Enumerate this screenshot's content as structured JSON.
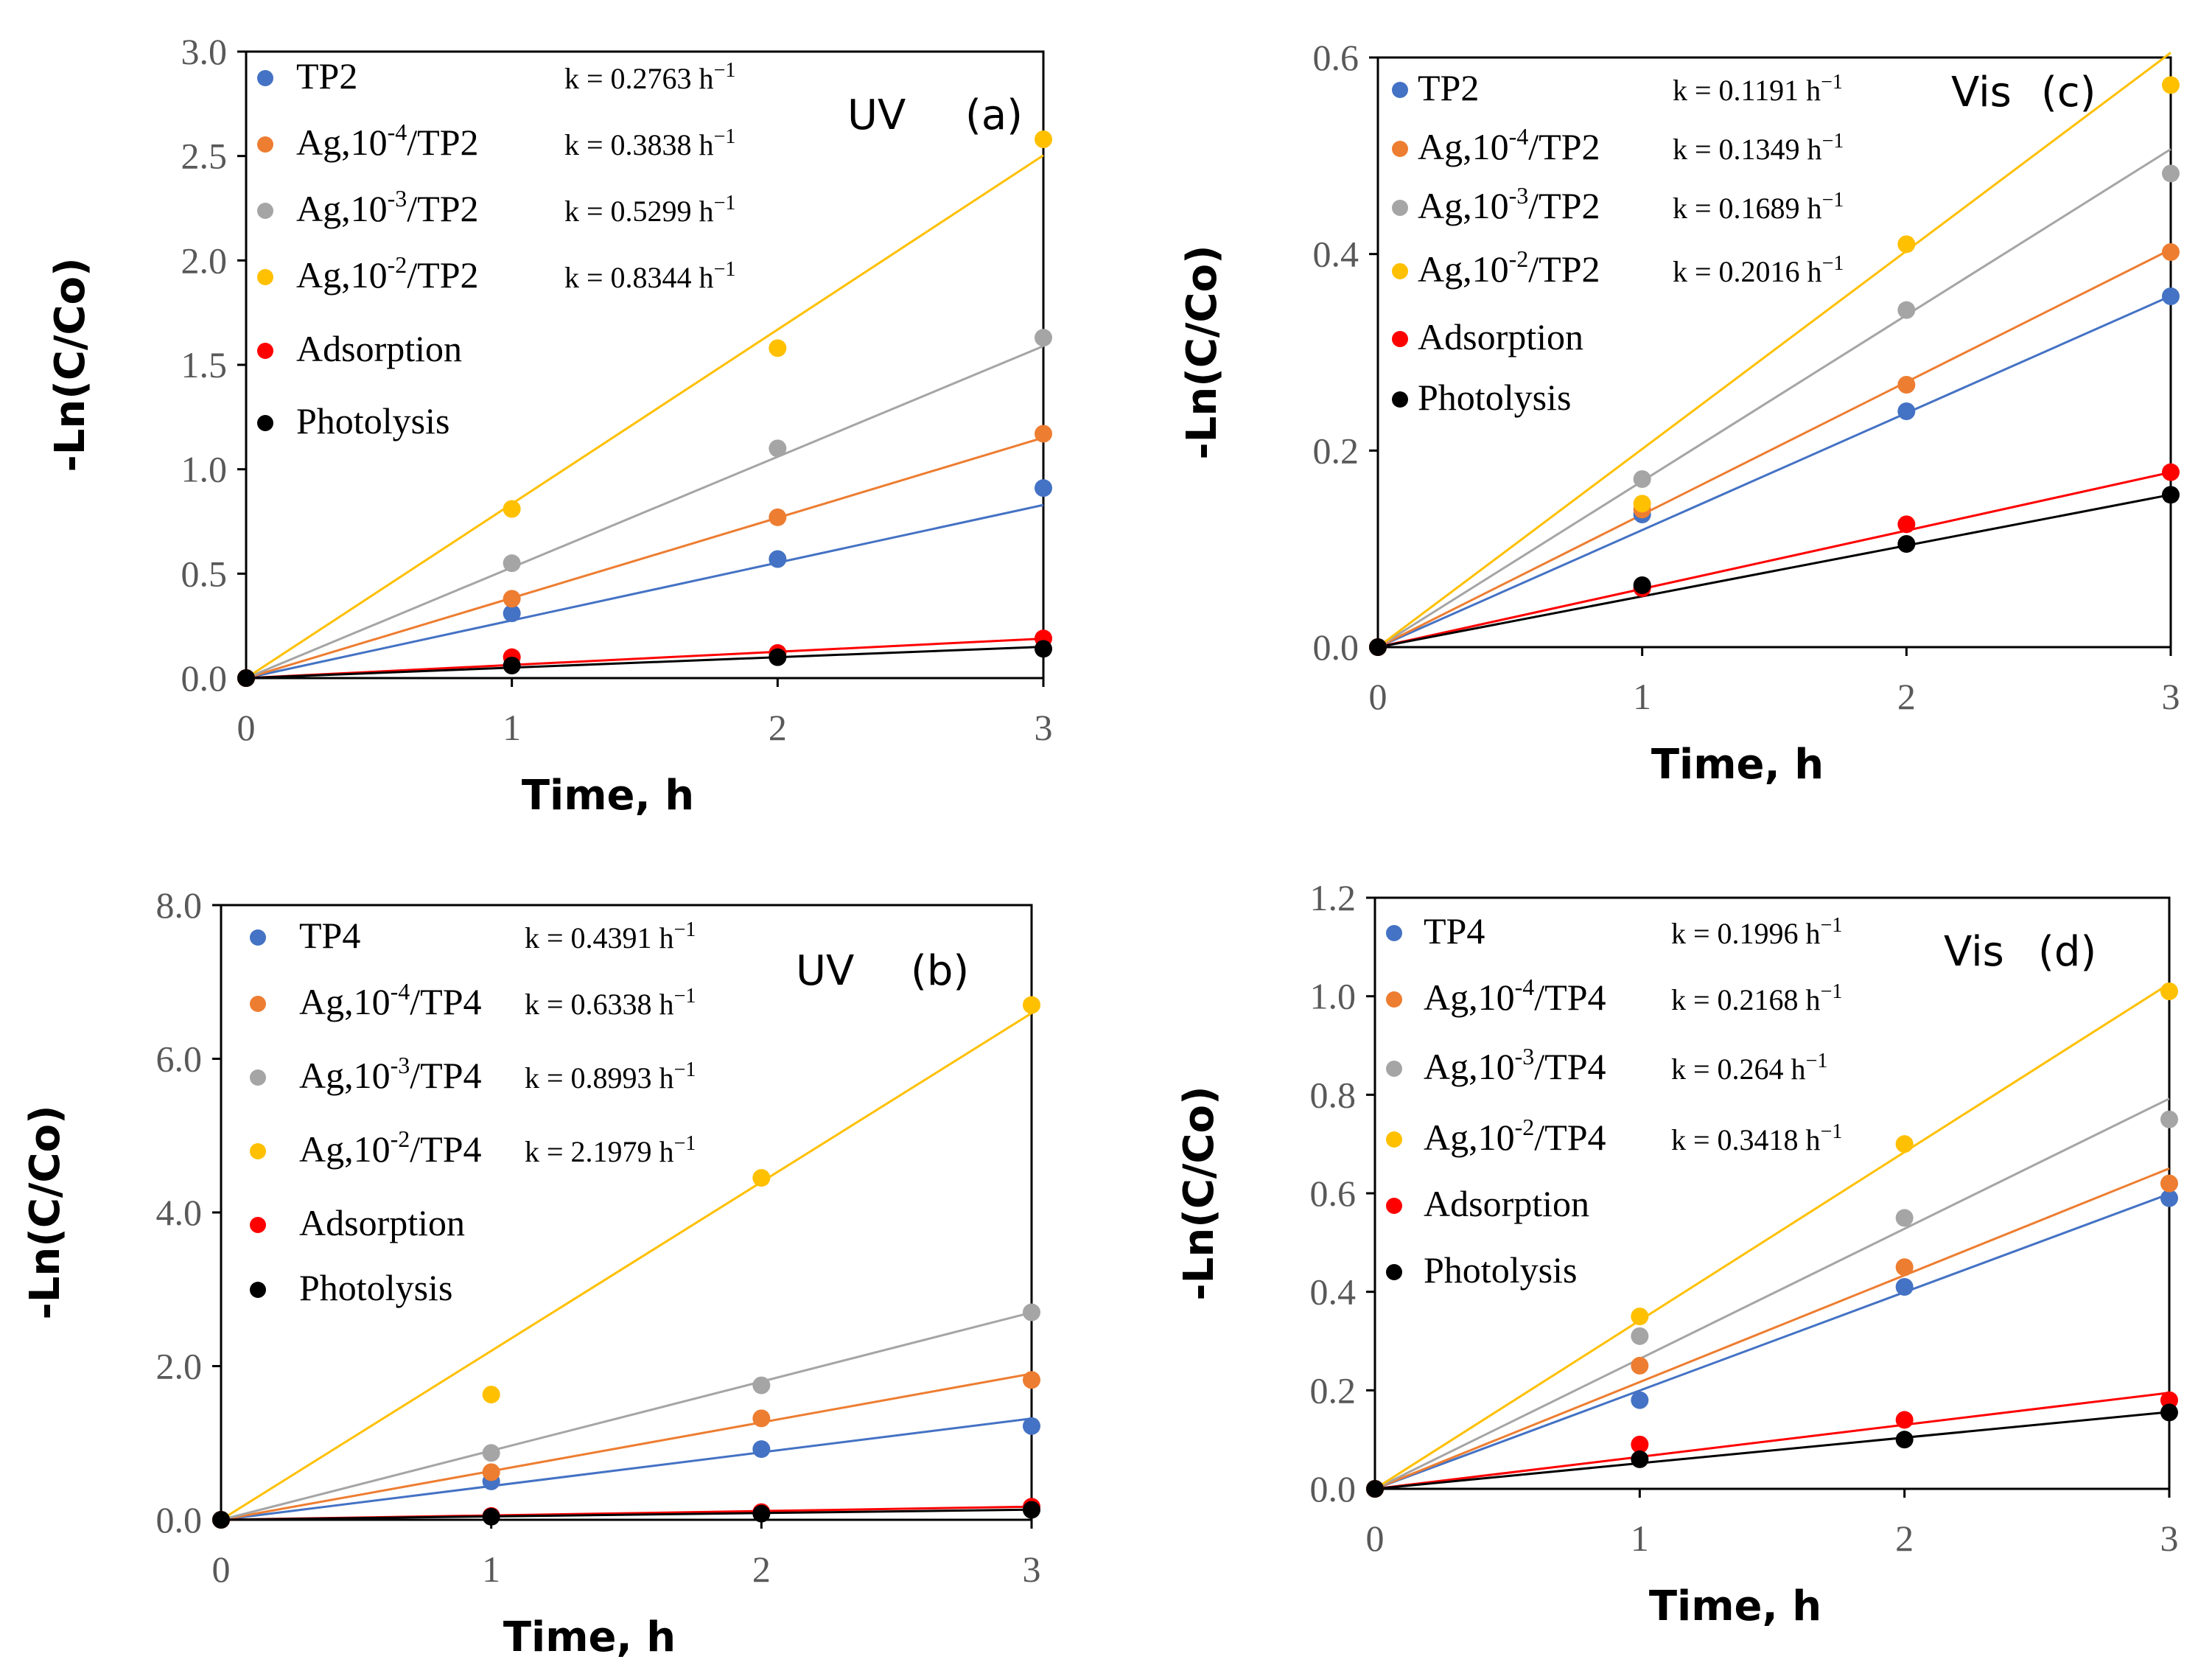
{
  "chart_data": [
    {
      "id": "a",
      "type": "scatter",
      "title": "",
      "light": "UV",
      "panel_label": "(a)",
      "xlabel": "Time, h",
      "ylabel": "-Ln(C/Co)",
      "xlim": [
        0,
        3
      ],
      "ylim": [
        0,
        3
      ],
      "x_ticks": [
        "0",
        "1",
        "2",
        "3"
      ],
      "y_ticks": [
        "0.0",
        "0.5",
        "1.0",
        "1.5",
        "2.0",
        "2.5",
        "3.0"
      ],
      "legend_position": "top-left",
      "x": [
        0,
        1,
        2,
        3
      ],
      "series": [
        {
          "name": "TP2",
          "name_parts": [
            "TP2",
            "",
            ""
          ],
          "k": "k = 0.2763 h",
          "color": "#4472C4",
          "values": [
            0,
            0.31,
            0.57,
            0.91
          ],
          "slope": 0.2763
        },
        {
          "name": "Ag,10-4/TP2",
          "name_parts": [
            "Ag,10",
            "-4",
            "/TP2"
          ],
          "k": "k = 0.3838 h",
          "color": "#ED7D31",
          "values": [
            0,
            0.38,
            0.77,
            1.17
          ],
          "slope": 0.3838
        },
        {
          "name": "Ag,10-3/TP2",
          "name_parts": [
            "Ag,10",
            "-3",
            "/TP2"
          ],
          "k": "k = 0.5299 h",
          "color": "#A5A5A5",
          "values": [
            0,
            0.55,
            1.1,
            1.63
          ],
          "slope": 0.5299
        },
        {
          "name": "Ag,10-2/TP2",
          "name_parts": [
            "Ag,10",
            "-2",
            "/TP2"
          ],
          "k": "k = 0.8344 h",
          "color": "#FFC000",
          "values": [
            0,
            0.81,
            1.58,
            2.58
          ],
          "slope": 0.8344
        },
        {
          "name": "Adsorption",
          "name_parts": [
            "Adsorption",
            "",
            ""
          ],
          "k": "",
          "color": "#FF0000",
          "values": [
            0,
            0.1,
            0.12,
            0.19
          ],
          "slope": 0.063
        },
        {
          "name": "Photolysis",
          "name_parts": [
            "Photolysis",
            "",
            ""
          ],
          "k": "",
          "color": "#000000",
          "values": [
            0,
            0.06,
            0.1,
            0.14
          ],
          "slope": 0.05
        }
      ]
    },
    {
      "id": "c",
      "type": "scatter",
      "title": "",
      "light": "Vis",
      "panel_label": "(c)",
      "xlabel": "Time, h",
      "ylabel": "-Ln(C/Co)",
      "xlim": [
        0,
        3
      ],
      "ylim": [
        0,
        0.6
      ],
      "x_ticks": [
        "0",
        "1",
        "2",
        "3"
      ],
      "y_ticks": [
        "0.0",
        "0.2",
        "0.4",
        "0.6"
      ],
      "legend_position": "top-left",
      "x": [
        0,
        1,
        2,
        3
      ],
      "series": [
        {
          "name": "TP2",
          "name_parts": [
            "TP2",
            "",
            ""
          ],
          "k": "k = 0.1191 h",
          "color": "#4472C4",
          "values": [
            0,
            0.135,
            0.24,
            0.357
          ],
          "slope": 0.1191
        },
        {
          "name": "Ag,10-4/TP2",
          "name_parts": [
            "Ag,10",
            "-4",
            "/TP2"
          ],
          "k": "k = 0.1349 h",
          "color": "#ED7D31",
          "values": [
            0,
            0.14,
            0.267,
            0.402
          ],
          "slope": 0.1349
        },
        {
          "name": "Ag,10-3/TP2",
          "name_parts": [
            "Ag,10",
            "-3",
            "/TP2"
          ],
          "k": "k = 0.1689 h",
          "color": "#A5A5A5",
          "values": [
            0,
            0.171,
            0.343,
            0.482
          ],
          "slope": 0.1689
        },
        {
          "name": "Ag,10-2/TP2",
          "name_parts": [
            "Ag,10",
            "-2",
            "/TP2"
          ],
          "k": "k = 0.2016 h",
          "color": "#FFC000",
          "values": [
            0,
            0.146,
            0.41,
            0.572
          ],
          "slope": 0.2016
        },
        {
          "name": "Adsorption",
          "name_parts": [
            "Adsorption",
            "",
            ""
          ],
          "k": "",
          "color": "#FF0000",
          "values": [
            0,
            0.06,
            0.125,
            0.178
          ],
          "slope": 0.0593
        },
        {
          "name": "Photolysis",
          "name_parts": [
            "Photolysis",
            "",
            ""
          ],
          "k": "",
          "color": "#000000",
          "values": [
            0,
            0.063,
            0.105,
            0.155
          ],
          "slope": 0.0517
        }
      ]
    },
    {
      "id": "b",
      "type": "scatter",
      "title": "",
      "light": "UV",
      "panel_label": "(b)",
      "xlabel": "Time, h",
      "ylabel": "-Ln(C/Co)",
      "xlim": [
        0,
        3
      ],
      "ylim": [
        0,
        8
      ],
      "x_ticks": [
        "0",
        "1",
        "2",
        "3"
      ],
      "y_ticks": [
        "0.0",
        "2.0",
        "4.0",
        "6.0",
        "8.0"
      ],
      "legend_position": "top-left",
      "x": [
        0,
        1,
        2,
        3
      ],
      "series": [
        {
          "name": "TP4",
          "name_parts": [
            "TP4",
            "",
            ""
          ],
          "k": "k = 0.4391 h",
          "color": "#4472C4",
          "values": [
            0,
            0.5,
            0.92,
            1.22
          ],
          "slope": 0.4391
        },
        {
          "name": "Ag,10-4/TP4",
          "name_parts": [
            "Ag,10",
            "-4",
            "/TP4"
          ],
          "k": "k = 0.6338 h",
          "color": "#ED7D31",
          "values": [
            0,
            0.62,
            1.32,
            1.82
          ],
          "slope": 0.6338
        },
        {
          "name": "Ag,10-3/TP4",
          "name_parts": [
            "Ag,10",
            "-3",
            "/TP4"
          ],
          "k": "k = 0.8993 h",
          "color": "#A5A5A5",
          "values": [
            0,
            0.87,
            1.75,
            2.7
          ],
          "slope": 0.8993
        },
        {
          "name": "Ag,10-2/TP4",
          "name_parts": [
            "Ag,10",
            "-2",
            "/TP4"
          ],
          "k": "k = 2.1979 h",
          "color": "#FFC000",
          "values": [
            0,
            1.63,
            4.45,
            6.7
          ],
          "slope": 2.1979
        },
        {
          "name": "Adsorption",
          "name_parts": [
            "Adsorption",
            "",
            ""
          ],
          "k": "",
          "color": "#FF0000",
          "values": [
            0,
            0.05,
            0.1,
            0.17
          ],
          "slope": 0.057
        },
        {
          "name": "Photolysis",
          "name_parts": [
            "Photolysis",
            "",
            ""
          ],
          "k": "",
          "color": "#000000",
          "values": [
            0,
            0.04,
            0.08,
            0.13
          ],
          "slope": 0.044
        }
      ]
    },
    {
      "id": "d",
      "type": "scatter",
      "title": "",
      "light": "Vis",
      "panel_label": "(d)",
      "xlabel": "Time, h",
      "ylabel": "-Ln(C/Co)",
      "xlim": [
        0,
        3
      ],
      "ylim": [
        0,
        1.2
      ],
      "x_ticks": [
        "0",
        "1",
        "2",
        "3"
      ],
      "y_ticks": [
        "0.0",
        "0.2",
        "0.4",
        "0.6",
        "0.8",
        "1.0",
        "1.2"
      ],
      "legend_position": "top-left",
      "x": [
        0,
        1,
        2,
        3
      ],
      "series": [
        {
          "name": "TP4",
          "name_parts": [
            "TP4",
            "",
            ""
          ],
          "k": "k = 0.1996 h",
          "color": "#4472C4",
          "values": [
            0,
            0.18,
            0.41,
            0.59
          ],
          "slope": 0.1996
        },
        {
          "name": "Ag,10-4/TP4",
          "name_parts": [
            "Ag,10",
            "-4",
            "/TP4"
          ],
          "k": "k = 0.2168 h",
          "color": "#ED7D31",
          "values": [
            0,
            0.25,
            0.45,
            0.62
          ],
          "slope": 0.2168
        },
        {
          "name": "Ag,10-3/TP4",
          "name_parts": [
            "Ag,10",
            "-3",
            "/TP4"
          ],
          "k": "k = 0.264 h",
          "color": "#A5A5A5",
          "values": [
            0,
            0.31,
            0.55,
            0.75
          ],
          "slope": 0.264
        },
        {
          "name": "Ag,10-2/TP4",
          "name_parts": [
            "Ag,10",
            "-2",
            "/TP4"
          ],
          "k": "k = 0.3418 h",
          "color": "#FFC000",
          "values": [
            0,
            0.35,
            0.7,
            1.01
          ],
          "slope": 0.3418
        },
        {
          "name": "Adsorption",
          "name_parts": [
            "Adsorption",
            "",
            ""
          ],
          "k": "",
          "color": "#FF0000",
          "values": [
            0,
            0.09,
            0.14,
            0.18
          ],
          "slope": 0.065
        },
        {
          "name": "Photolysis",
          "name_parts": [
            "Photolysis",
            "",
            ""
          ],
          "k": "",
          "color": "#000000",
          "values": [
            0,
            0.06,
            0.1,
            0.155
          ],
          "slope": 0.052
        }
      ]
    }
  ],
  "k_unit_superscript": "−1"
}
